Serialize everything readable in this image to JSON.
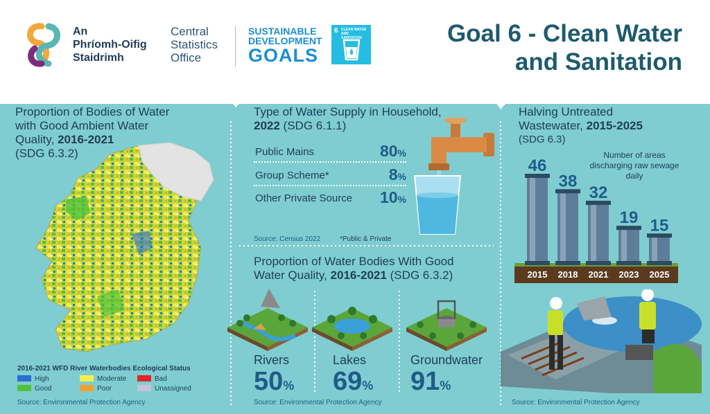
{
  "header": {
    "org_irish": [
      "An",
      "Phríomh-Oifig",
      "Staidrimh"
    ],
    "org_english": [
      "Central",
      "Statistics",
      "Office"
    ],
    "sdg_line1": "SUSTAINABLE",
    "sdg_line2": "DEVELOPMENT",
    "sdg_line3": "GOALS",
    "sdg_box_number": "6",
    "sdg_box_label": "CLEAN WATER AND SANITATION",
    "goal_title_line1": "Goal 6 - Clean Water",
    "goal_title_line2": "and Sanitation"
  },
  "panel_left": {
    "title_line1": "Proportion of Bodies of Water",
    "title_line2": "with Good Ambient Water",
    "title_line3_pre": "Quality, ",
    "title_line3_bold": "2016-2021",
    "title_line4": "(SDG 6.3.2)",
    "legend_title": "2016-2021 WFD River Waterbodies Ecological Status",
    "legend": [
      {
        "label": "High",
        "color": "#2a6fd1"
      },
      {
        "label": "Moderate",
        "color": "#f4f04a"
      },
      {
        "label": "Bad",
        "color": "#e0262a"
      },
      {
        "label": "Good",
        "color": "#4ec33a"
      },
      {
        "label": "Poor",
        "color": "#f0a030"
      },
      {
        "label": "Unassigned",
        "color": "#c8c2d8"
      }
    ],
    "source": "Source: Environmental Protection Agency"
  },
  "panel_middle": {
    "title_line1": "Type of Water Supply in Household,",
    "title_line2_bold": "2022",
    "title_line2_rest": " (SDG 6.1.1)",
    "rows": [
      {
        "label": "Public Mains",
        "value": "80",
        "unit": "%"
      },
      {
        "label": "Group Scheme*",
        "value": "8",
        "unit": "%"
      },
      {
        "label": "Other Private Source",
        "value": "10",
        "unit": "%"
      }
    ],
    "source": "Source: Census 2022",
    "footnote": "*Public & Private",
    "quality_title_line1": "Proportion of Water Bodies With Good",
    "quality_title_line2_pre": "Water Quality, ",
    "quality_title_line2_bold": "2016-2021",
    "quality_title_line2_rest": " (SDG 6.3.2)",
    "bodies": [
      {
        "label": "Rivers",
        "value": "50",
        "unit": "%"
      },
      {
        "label": "Lakes",
        "value": "69",
        "unit": "%"
      },
      {
        "label": "Groundwater",
        "value": "91",
        "unit": "%"
      }
    ],
    "quality_source": "Source: Environmental Protection Agency"
  },
  "panel_right": {
    "title_line1": "Halving Untreated",
    "title_line2_pre": "Wastewater, ",
    "title_line2_bold": "2015-2025",
    "title_line3": "(SDG 6.3)",
    "note": "Number of areas discharging raw sewage daily",
    "source": "Source: Environmental Protection Agency"
  },
  "chart_data": {
    "type": "bar",
    "title": "Halving Untreated Wastewater, 2015-2025",
    "categories": [
      "2015",
      "2018",
      "2021",
      "2023",
      "2025"
    ],
    "values": [
      46,
      38,
      32,
      19,
      15
    ],
    "ylabel": "Number of areas discharging raw sewage daily",
    "ylim": [
      0,
      46
    ],
    "colors": {
      "bar": "#5e7d99",
      "bar_light": "#8aa3b8",
      "ground": "#5a3b1e"
    }
  },
  "colors": {
    "teal_bg": "#7fcdd0",
    "navy": "#1f3c5a",
    "accent_blue": "#1f5c8a",
    "sdg_blue": "#26bde2"
  }
}
